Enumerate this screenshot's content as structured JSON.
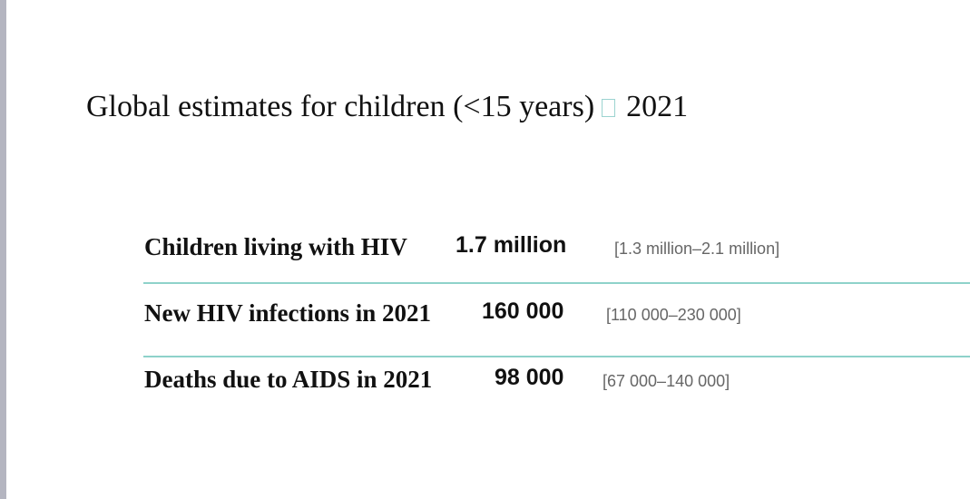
{
  "heading": {
    "text_before": "Global estimates for children (<15 years)",
    "text_after": "2021"
  },
  "rows": [
    {
      "label": "Children living with HIV",
      "value": "1.7 million",
      "range": "[1.3 million–2.1 million]"
    },
    {
      "label": "New HIV infections in 2021",
      "value": "160 000",
      "range": "[110 000–230 000]"
    },
    {
      "label": "Deaths due to AIDS in 2021",
      "value": "98 000",
      "range": "[67 000–140 000]"
    }
  ],
  "colors": {
    "divider": "#8ed2ca",
    "left_bar": "#b4b5c0",
    "range_text": "#666666"
  }
}
